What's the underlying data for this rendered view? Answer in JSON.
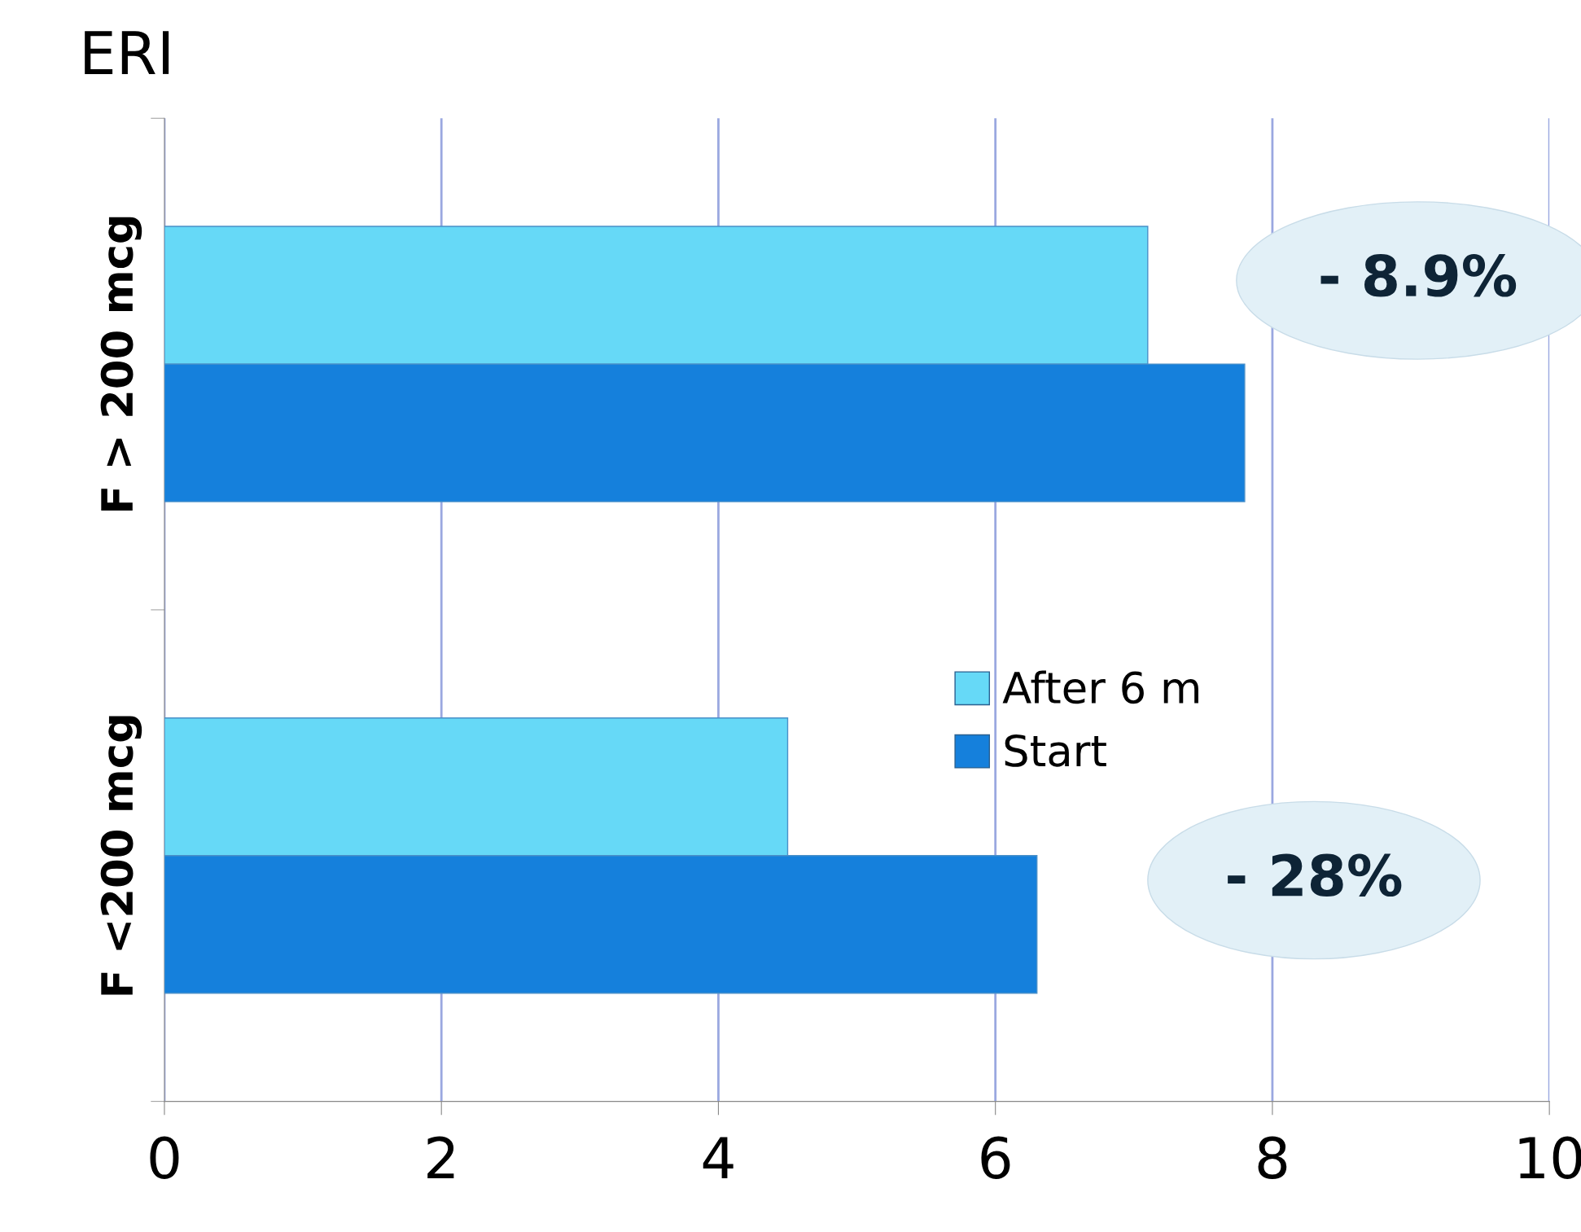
{
  "chart_data": {
    "type": "bar",
    "orientation": "horizontal",
    "title": "ERI",
    "categories": [
      "F > 200 mcg",
      "F <200 mcg"
    ],
    "series": [
      {
        "name": "After 6 m",
        "color": "#66d9f7",
        "values": [
          7.1,
          4.5
        ]
      },
      {
        "name": "Start",
        "color": "#1580dc",
        "values": [
          7.8,
          6.3
        ]
      }
    ],
    "xlim": [
      0,
      10
    ],
    "xticks": [
      0,
      2,
      4,
      6,
      8,
      10
    ],
    "grid": "x",
    "legend": "center",
    "annotations": [
      "- 8.9%",
      "- 28%"
    ]
  }
}
